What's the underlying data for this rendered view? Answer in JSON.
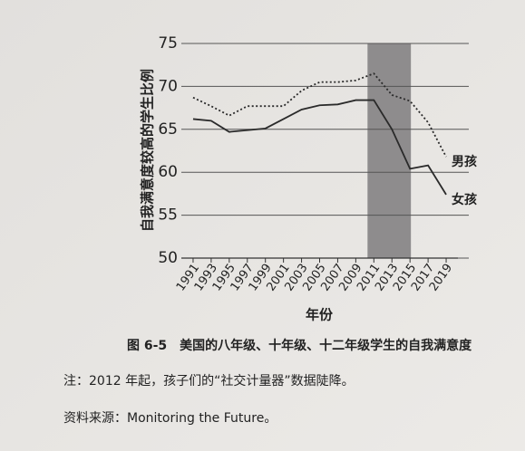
{
  "chart_data": {
    "type": "line",
    "ylabel": "自我满意度较高的学生比例",
    "xlabel": "年份",
    "caption": "图 6-5　美国的八年级、十年级、十二年级学生的自我满意度",
    "note": "注：2012 年起，孩子们的“社交计量器”数据陡降。",
    "source": "资料来源：Monitoring the Future。",
    "x": [
      1991,
      1993,
      1995,
      1997,
      1999,
      2001,
      2003,
      2005,
      2007,
      2009,
      2011,
      2013,
      2015,
      2017,
      2019
    ],
    "series": [
      {
        "name": "男孩",
        "color": "#2a2a2a",
        "dash": "dotted",
        "values": [
          68.7,
          67.7,
          66.6,
          67.7,
          67.7,
          67.7,
          69.5,
          70.5,
          70.5,
          70.7,
          71.5,
          69.0,
          68.3,
          65.8,
          61.8
        ]
      },
      {
        "name": "女孩",
        "color": "#2a2a2a",
        "dash": "solid",
        "values": [
          66.2,
          66.0,
          64.7,
          64.9,
          65.1,
          66.2,
          67.3,
          67.8,
          67.9,
          68.4,
          68.4,
          65.0,
          60.4,
          60.8,
          57.4
        ]
      }
    ],
    "highlight": [
      2010.3,
      2015.1
    ],
    "highlight_color": "#8e8c8d",
    "xlim": [
      1989.7,
      2020.3
    ],
    "ylim": [
      50,
      75
    ],
    "xticks": [
      1991,
      1993,
      1995,
      1997,
      1999,
      2001,
      2003,
      2005,
      2007,
      2009,
      2011,
      2013,
      2015,
      2017,
      2019
    ],
    "yticks": [
      50,
      55,
      60,
      65,
      70,
      75
    ],
    "grid": true
  }
}
